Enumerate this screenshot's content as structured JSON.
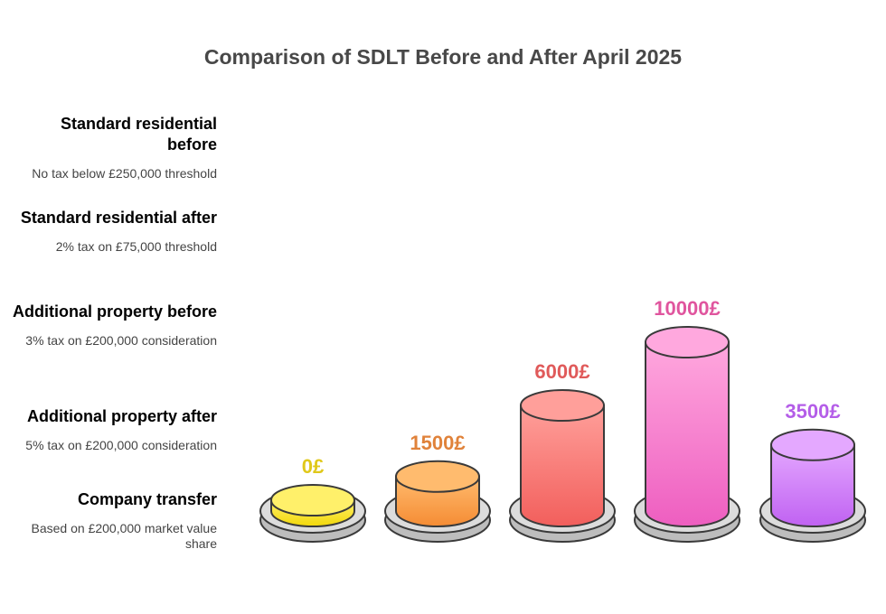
{
  "title": "Comparison of SDLT Before and After April 2025",
  "chart_data": {
    "type": "bar",
    "title": "Comparison of SDLT Before and After April 2025",
    "categories": [
      "Standard residential before",
      "Standard residential after",
      "Additional property before",
      "Additional property after",
      "Company transfer"
    ],
    "values": [
      0,
      1500,
      6000,
      10000,
      3500
    ],
    "value_labels": [
      "0£",
      "1500£",
      "6000£",
      "10000£",
      "3500£"
    ],
    "unit": "£",
    "ylim": [
      0,
      10000
    ],
    "grid": false,
    "legend_placement": "left"
  },
  "legend": [
    {
      "title": "Standard residential before",
      "desc": "No tax below £250,000 threshold",
      "color": "#e0c81a",
      "from": "#fff06a",
      "to": "#f2d80a"
    },
    {
      "title": "Standard residential after",
      "desc": "2% tax on £75,000 threshold",
      "color": "#e0823a",
      "from": "#ffbb6e",
      "to": "#f58c34"
    },
    {
      "title": "Additional property before",
      "desc": "3% tax on £200,000 consideration",
      "color": "#e05a5a",
      "from": "#ff9f9a",
      "to": "#f25f5c"
    },
    {
      "title": "Additional property after",
      "desc": "5% tax on £200,000 consideration",
      "color": "#e0559e",
      "from": "#ffa8de",
      "to": "#ee5ec0"
    },
    {
      "title": "Company transfer",
      "desc": "Based on £200,000 market value share",
      "color": "#b45de8",
      "from": "#e4a8ff",
      "to": "#c062f2"
    }
  ]
}
